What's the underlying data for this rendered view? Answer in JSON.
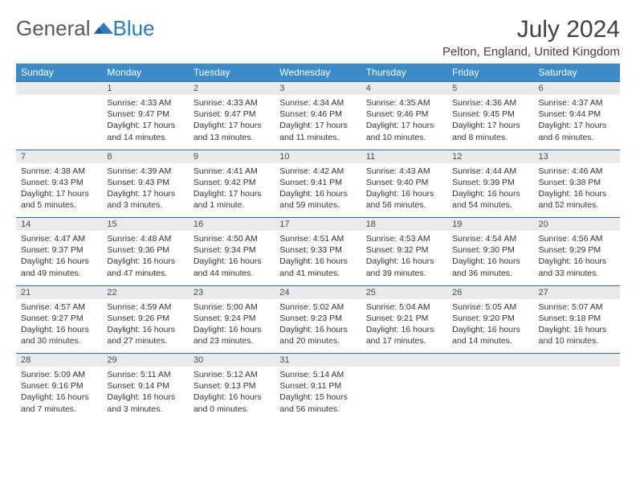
{
  "logo": {
    "text1": "General",
    "text2": "Blue"
  },
  "title": "July 2024",
  "location": "Pelton, England, United Kingdom",
  "colors": {
    "header_bg": "#3b8bc8",
    "header_text": "#ffffff",
    "daynum_bg": "#e9eaeb",
    "rule": "#2b6ca3",
    "logo_gray": "#5a5a5a",
    "logo_blue": "#2b7bbf"
  },
  "day_labels": [
    "Sunday",
    "Monday",
    "Tuesday",
    "Wednesday",
    "Thursday",
    "Friday",
    "Saturday"
  ],
  "weeks": [
    {
      "nums": [
        "",
        "1",
        "2",
        "3",
        "4",
        "5",
        "6"
      ],
      "cells": [
        "",
        "Sunrise: 4:33 AM\nSunset: 9:47 PM\nDaylight: 17 hours and 14 minutes.",
        "Sunrise: 4:33 AM\nSunset: 9:47 PM\nDaylight: 17 hours and 13 minutes.",
        "Sunrise: 4:34 AM\nSunset: 9:46 PM\nDaylight: 17 hours and 11 minutes.",
        "Sunrise: 4:35 AM\nSunset: 9:46 PM\nDaylight: 17 hours and 10 minutes.",
        "Sunrise: 4:36 AM\nSunset: 9:45 PM\nDaylight: 17 hours and 8 minutes.",
        "Sunrise: 4:37 AM\nSunset: 9:44 PM\nDaylight: 17 hours and 6 minutes."
      ]
    },
    {
      "nums": [
        "7",
        "8",
        "9",
        "10",
        "11",
        "12",
        "13"
      ],
      "cells": [
        "Sunrise: 4:38 AM\nSunset: 9:43 PM\nDaylight: 17 hours and 5 minutes.",
        "Sunrise: 4:39 AM\nSunset: 9:43 PM\nDaylight: 17 hours and 3 minutes.",
        "Sunrise: 4:41 AM\nSunset: 9:42 PM\nDaylight: 17 hours and 1 minute.",
        "Sunrise: 4:42 AM\nSunset: 9:41 PM\nDaylight: 16 hours and 59 minutes.",
        "Sunrise: 4:43 AM\nSunset: 9:40 PM\nDaylight: 16 hours and 56 minutes.",
        "Sunrise: 4:44 AM\nSunset: 9:39 PM\nDaylight: 16 hours and 54 minutes.",
        "Sunrise: 4:46 AM\nSunset: 9:38 PM\nDaylight: 16 hours and 52 minutes."
      ]
    },
    {
      "nums": [
        "14",
        "15",
        "16",
        "17",
        "18",
        "19",
        "20"
      ],
      "cells": [
        "Sunrise: 4:47 AM\nSunset: 9:37 PM\nDaylight: 16 hours and 49 minutes.",
        "Sunrise: 4:48 AM\nSunset: 9:36 PM\nDaylight: 16 hours and 47 minutes.",
        "Sunrise: 4:50 AM\nSunset: 9:34 PM\nDaylight: 16 hours and 44 minutes.",
        "Sunrise: 4:51 AM\nSunset: 9:33 PM\nDaylight: 16 hours and 41 minutes.",
        "Sunrise: 4:53 AM\nSunset: 9:32 PM\nDaylight: 16 hours and 39 minutes.",
        "Sunrise: 4:54 AM\nSunset: 9:30 PM\nDaylight: 16 hours and 36 minutes.",
        "Sunrise: 4:56 AM\nSunset: 9:29 PM\nDaylight: 16 hours and 33 minutes."
      ]
    },
    {
      "nums": [
        "21",
        "22",
        "23",
        "24",
        "25",
        "26",
        "27"
      ],
      "cells": [
        "Sunrise: 4:57 AM\nSunset: 9:27 PM\nDaylight: 16 hours and 30 minutes.",
        "Sunrise: 4:59 AM\nSunset: 9:26 PM\nDaylight: 16 hours and 27 minutes.",
        "Sunrise: 5:00 AM\nSunset: 9:24 PM\nDaylight: 16 hours and 23 minutes.",
        "Sunrise: 5:02 AM\nSunset: 9:23 PM\nDaylight: 16 hours and 20 minutes.",
        "Sunrise: 5:04 AM\nSunset: 9:21 PM\nDaylight: 16 hours and 17 minutes.",
        "Sunrise: 5:05 AM\nSunset: 9:20 PM\nDaylight: 16 hours and 14 minutes.",
        "Sunrise: 5:07 AM\nSunset: 9:18 PM\nDaylight: 16 hours and 10 minutes."
      ]
    },
    {
      "nums": [
        "28",
        "29",
        "30",
        "31",
        "",
        "",
        ""
      ],
      "cells": [
        "Sunrise: 5:09 AM\nSunset: 9:16 PM\nDaylight: 16 hours and 7 minutes.",
        "Sunrise: 5:11 AM\nSunset: 9:14 PM\nDaylight: 16 hours and 3 minutes.",
        "Sunrise: 5:12 AM\nSunset: 9:13 PM\nDaylight: 16 hours and 0 minutes.",
        "Sunrise: 5:14 AM\nSunset: 9:11 PM\nDaylight: 15 hours and 56 minutes.",
        "",
        "",
        ""
      ]
    }
  ]
}
